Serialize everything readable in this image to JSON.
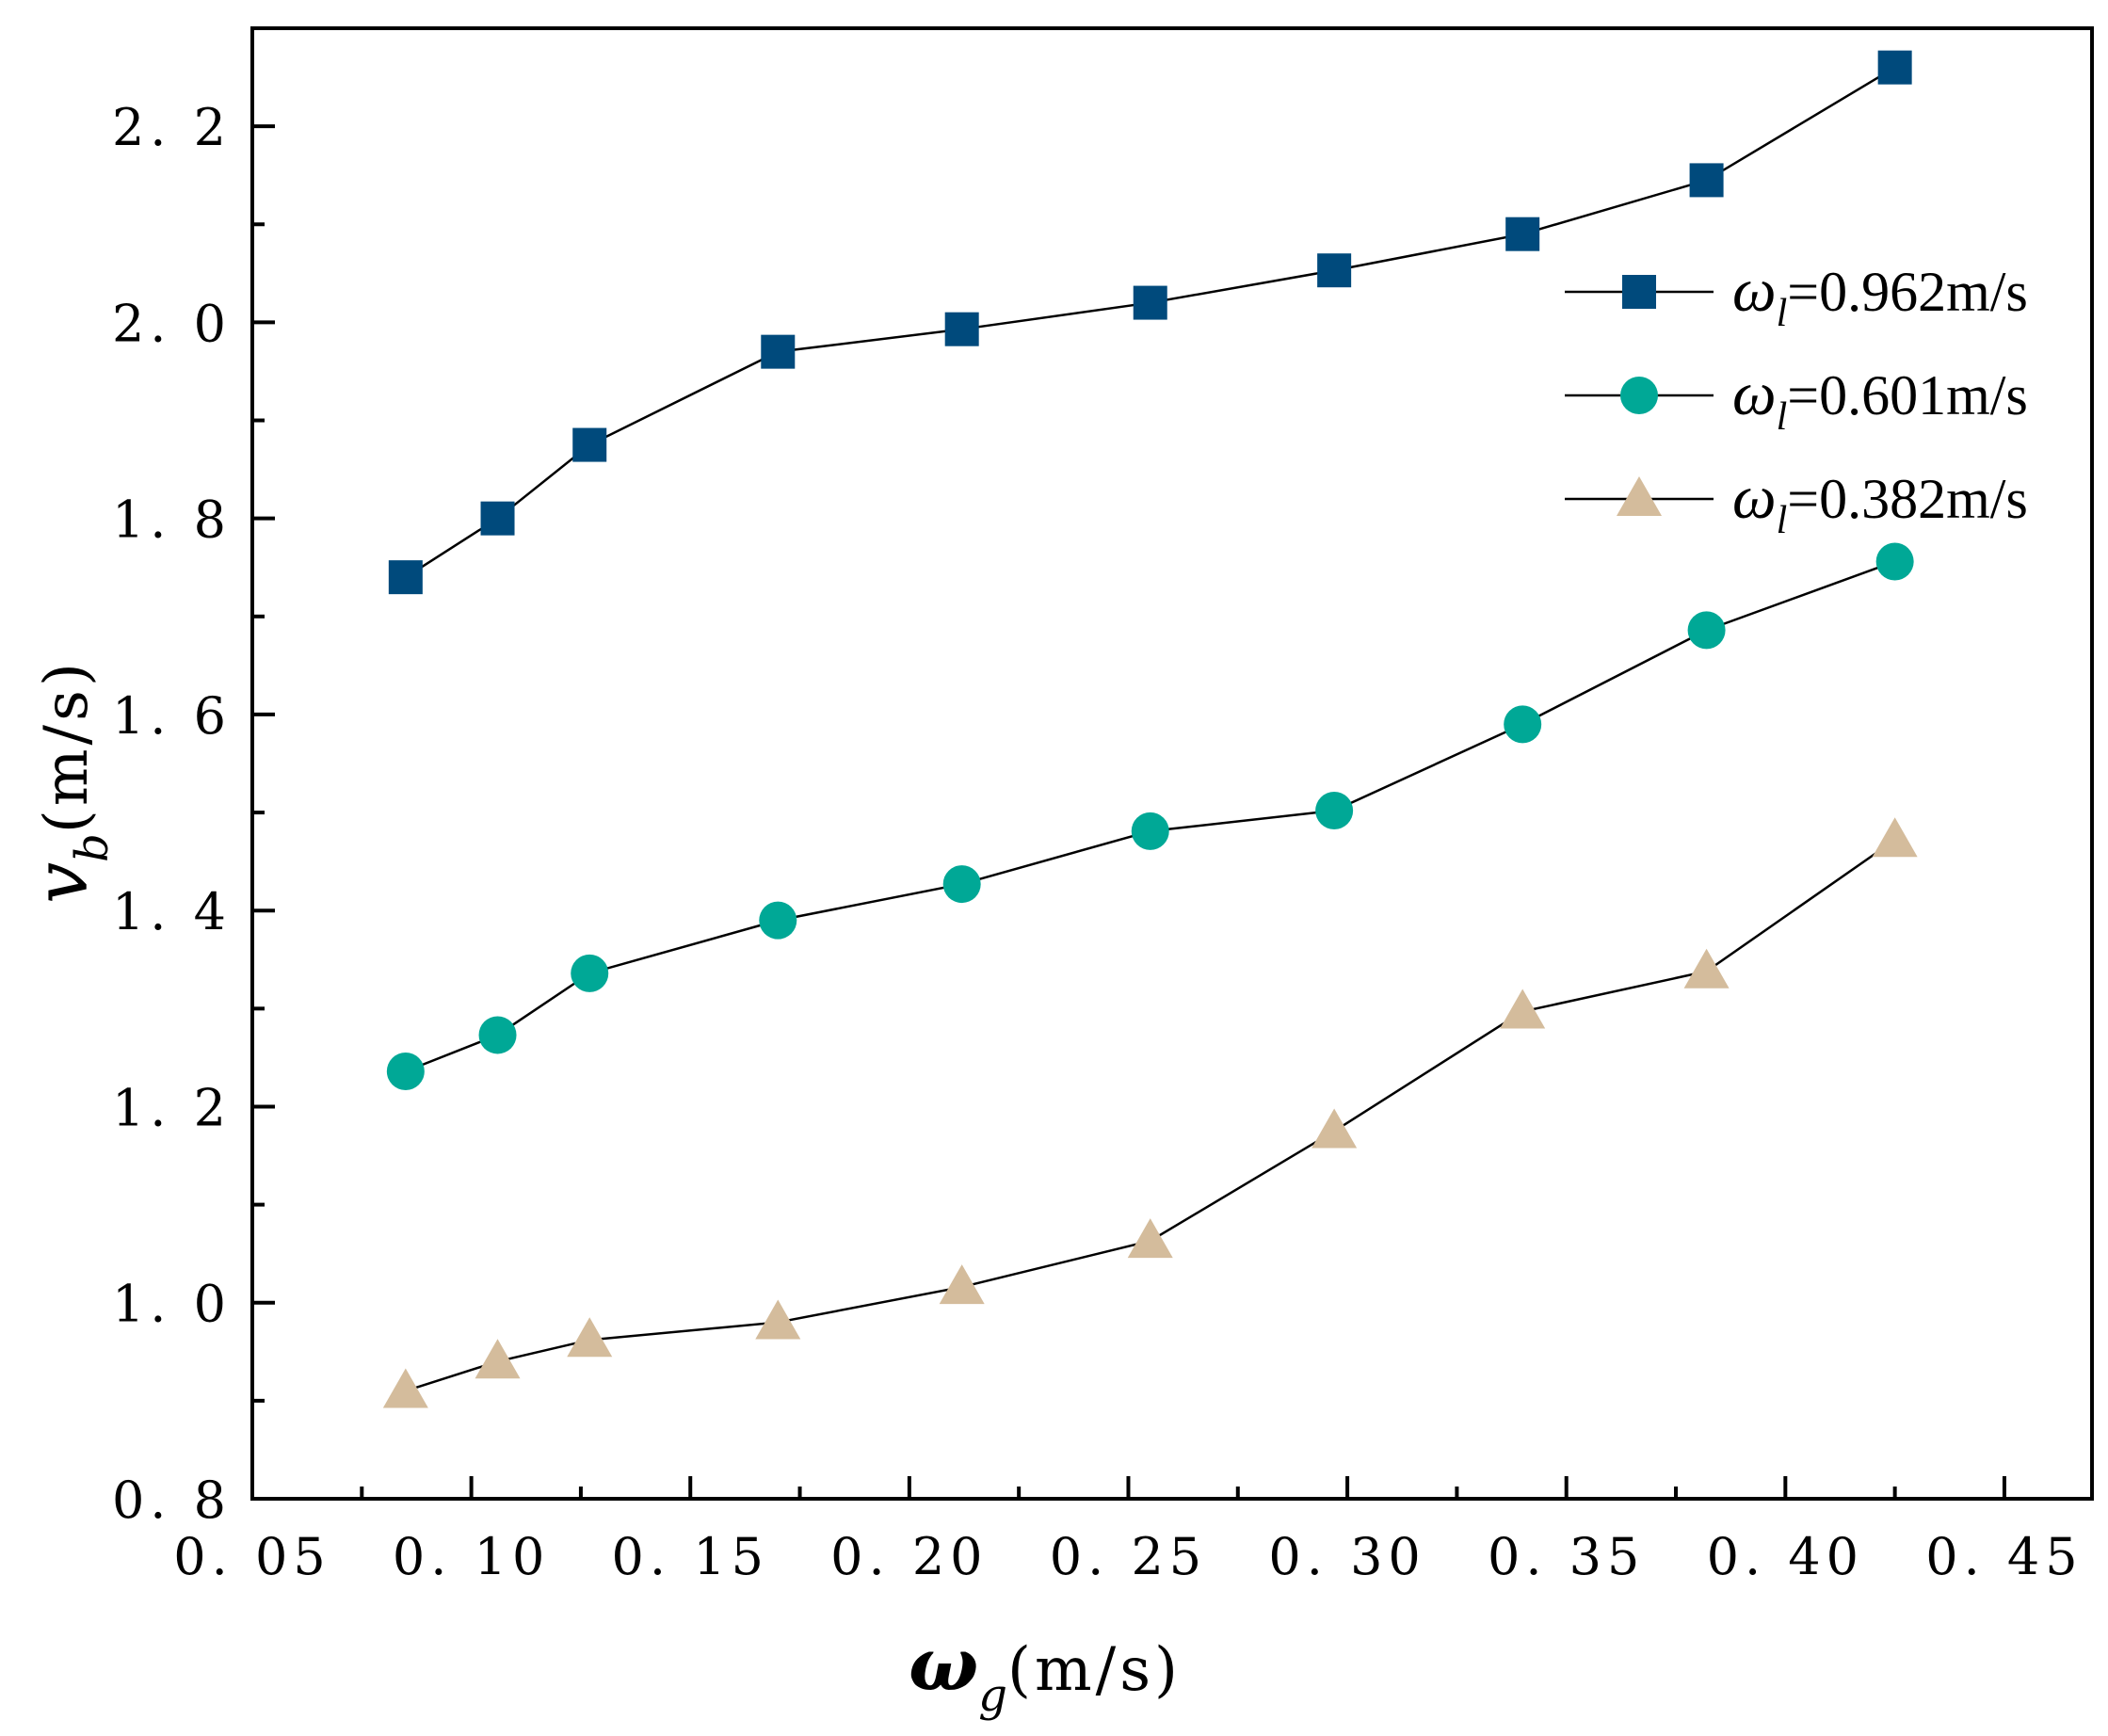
{
  "chart_data": {
    "type": "line",
    "title": "",
    "xlabel": {
      "symbol": "ω",
      "subscript": "g",
      "unit": "(m/s)"
    },
    "ylabel": {
      "symbol": "v",
      "subscript": "b",
      "unit": "(m/s)"
    },
    "xlim": [
      0.05,
      0.47
    ],
    "ylim": [
      0.8,
      2.3
    ],
    "xticks": [
      0.05,
      0.1,
      0.15,
      0.2,
      0.25,
      0.3,
      0.35,
      0.4,
      0.45
    ],
    "xtick_labels": [
      "0. 05",
      "0. 10",
      "0. 15",
      "0. 20",
      "0. 25",
      "0. 30",
      "0. 35",
      "0. 40",
      "0. 45"
    ],
    "yticks": [
      0.8,
      1.0,
      1.2,
      1.4,
      1.6,
      1.8,
      2.0,
      2.2
    ],
    "ytick_labels": [
      "0. 8",
      "1. 0",
      "1. 2",
      "1. 4",
      "1. 6",
      "1. 8",
      "2. 0",
      "2. 2"
    ],
    "legend_position": "top-right",
    "grid": false,
    "x": [
      0.085,
      0.106,
      0.127,
      0.17,
      0.212,
      0.255,
      0.297,
      0.34,
      0.382,
      0.425
    ],
    "series": [
      {
        "name": "ωl=0.962m/s",
        "label_symbol": "ω",
        "label_subscript": "l",
        "label_rest": "=0.962m/s",
        "marker": "square",
        "color": "#004a7c",
        "values": [
          1.74,
          1.8,
          1.875,
          1.97,
          1.993,
          2.02,
          2.053,
          2.09,
          2.145,
          2.26
        ]
      },
      {
        "name": "ωl=0.601m/s",
        "label_symbol": "ω",
        "label_subscript": "l",
        "label_rest": "=0.601m/s",
        "marker": "circle",
        "color": "#00a896",
        "values": [
          1.236,
          1.273,
          1.336,
          1.39,
          1.427,
          1.481,
          1.502,
          1.59,
          1.686,
          1.756
        ]
      },
      {
        "name": "ωl=0.382m/s",
        "label_symbol": "ω",
        "label_subscript": "l",
        "label_rest": "=0.382m/s",
        "marker": "triangle",
        "color": "#d4bc9c",
        "values": [
          0.91,
          0.94,
          0.962,
          0.98,
          1.016,
          1.063,
          1.175,
          1.297,
          1.338,
          1.472
        ]
      }
    ]
  }
}
